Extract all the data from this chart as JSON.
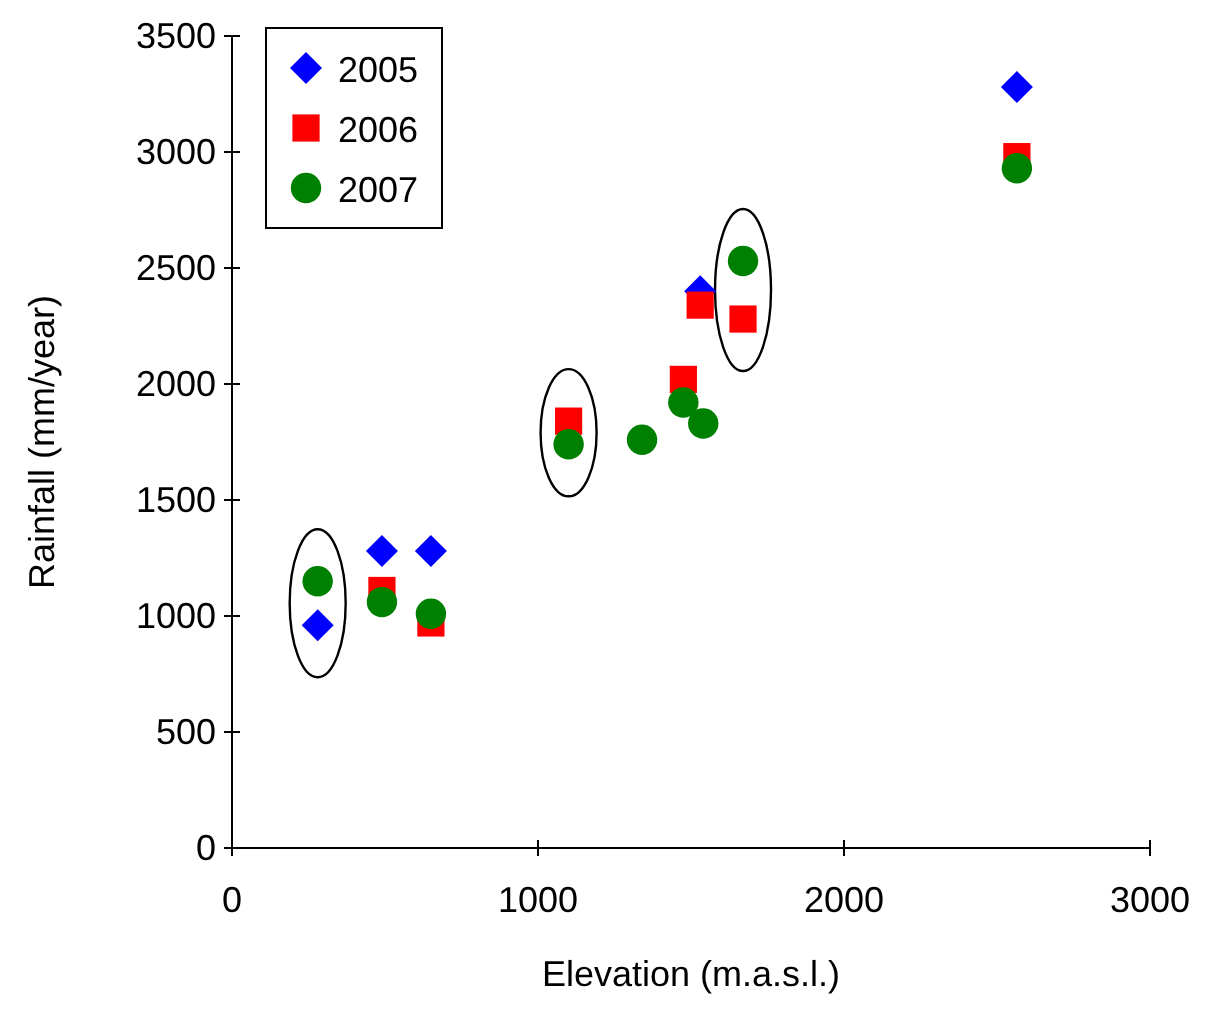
{
  "chart_data": {
    "type": "scatter",
    "xlabel": "Elevation (m.a.s.l.)",
    "ylabel": "Rainfall (mm/year)",
    "xlim": [
      0,
      3000
    ],
    "xticks": [
      0,
      1000,
      2000,
      3000
    ],
    "ylim": [
      0,
      3500
    ],
    "yticks": [
      0,
      500,
      1000,
      1500,
      2000,
      2500,
      3000,
      3500
    ],
    "grid": false,
    "legend": "top left",
    "series": [
      {
        "name": "2005",
        "color": "#0000ff",
        "marker": "diamond",
        "x": [
          280,
          490,
          650,
          1530,
          2565
        ],
        "values": [
          960,
          1280,
          1280,
          2400,
          3280
        ]
      },
      {
        "name": "2006",
        "color": "#ff0000",
        "marker": "square",
        "x": [
          490,
          650,
          1100,
          1475,
          1530,
          1670,
          2565
        ],
        "values": [
          1110,
          970,
          1840,
          2020,
          2340,
          2280,
          2980
        ]
      },
      {
        "name": "2007",
        "color": "#008000",
        "marker": "circle",
        "x": [
          280,
          490,
          650,
          1100,
          1340,
          1475,
          1540,
          1670,
          2565
        ],
        "values": [
          1150,
          1060,
          1010,
          1740,
          1760,
          1920,
          1830,
          2530,
          2930
        ]
      }
    ]
  }
}
